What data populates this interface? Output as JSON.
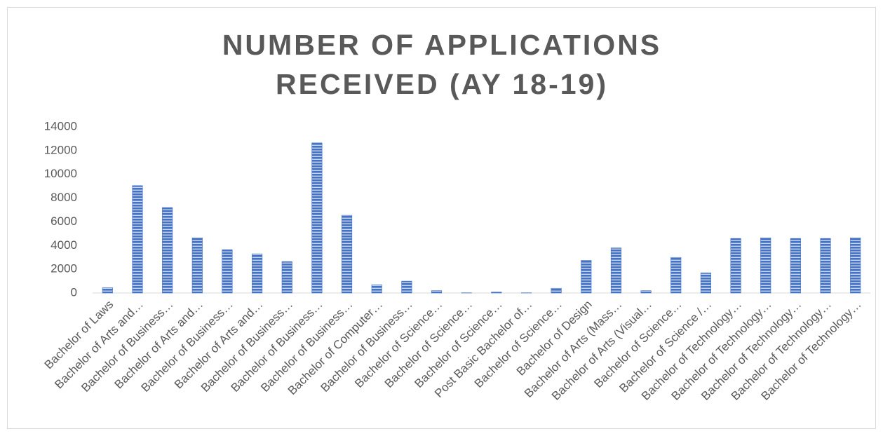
{
  "chart_data": {
    "type": "bar",
    "title": "NUMBER OF APPLICATIONS RECEIVED (AY 18-19)",
    "categories": [
      "Bachelor of Laws",
      "Bachelor of Arts and…",
      "Bachelor of Business…",
      "Bachelor of Arts and…",
      "Bachelor of Business…",
      "Bachelor of Arts and…",
      "Bachelor of Business…",
      "Bachelor of Business…",
      "Bachelor of Business…",
      "Bachelor of Computer…",
      "Bachelor of Business…",
      "Bachelor of Science…",
      "Bachelor of Science…",
      "Bachelor of Science…",
      "Post Basic Bachelor of…",
      "Bachelor of Science…",
      "Bachelor of Design",
      "Bachelor of Arts (Mass…",
      "Bachelor of Arts (Visual…",
      "Bachelor of Science…",
      "Bachelor of Science /…",
      "Bachelor of Technology…",
      "Bachelor of Technology…",
      "Bachelor of Technology…",
      "Bachelor of Technology…",
      "Bachelor of Technology…"
    ],
    "values": [
      450,
      9050,
      7200,
      4650,
      3650,
      3300,
      2650,
      12650,
      6550,
      700,
      1000,
      200,
      20,
      80,
      20,
      400,
      2750,
      3800,
      200,
      3000,
      1700,
      4600,
      4650,
      4600,
      4600,
      4650
    ],
    "color": "#4472c4",
    "ylim": [
      0,
      14000
    ],
    "yticks": [
      0,
      2000,
      4000,
      6000,
      8000,
      10000,
      12000,
      14000
    ],
    "grid": false
  }
}
